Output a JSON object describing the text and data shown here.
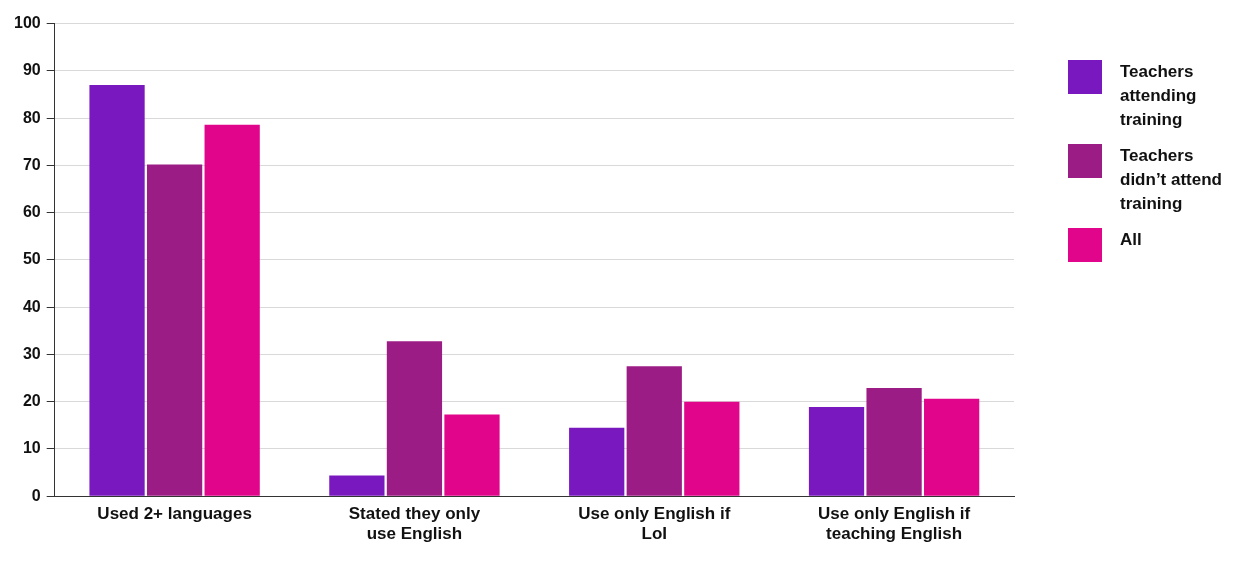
{
  "chart_data": {
    "type": "bar",
    "categories": [
      "Used 2+ languages",
      "Stated they only use English",
      "Use only English if LoI",
      "Use only English if teaching English"
    ],
    "series": [
      {
        "name": "Teachers attending training",
        "color": "#7a18bf",
        "values": [
          87,
          4.4,
          14.5,
          18.9
        ]
      },
      {
        "name": "Teachers didn’t attend training",
        "color": "#9c1c86",
        "values": [
          70.2,
          32.8,
          27.5,
          22.9
        ]
      },
      {
        "name": "All",
        "color": "#e1058c",
        "values": [
          78.6,
          17.3,
          20,
          20.6
        ]
      }
    ],
    "ylim": [
      0,
      100
    ],
    "yticks": [
      0,
      10,
      20,
      30,
      40,
      50,
      60,
      70,
      80,
      90,
      100
    ],
    "grid": "y",
    "legend": "right"
  }
}
